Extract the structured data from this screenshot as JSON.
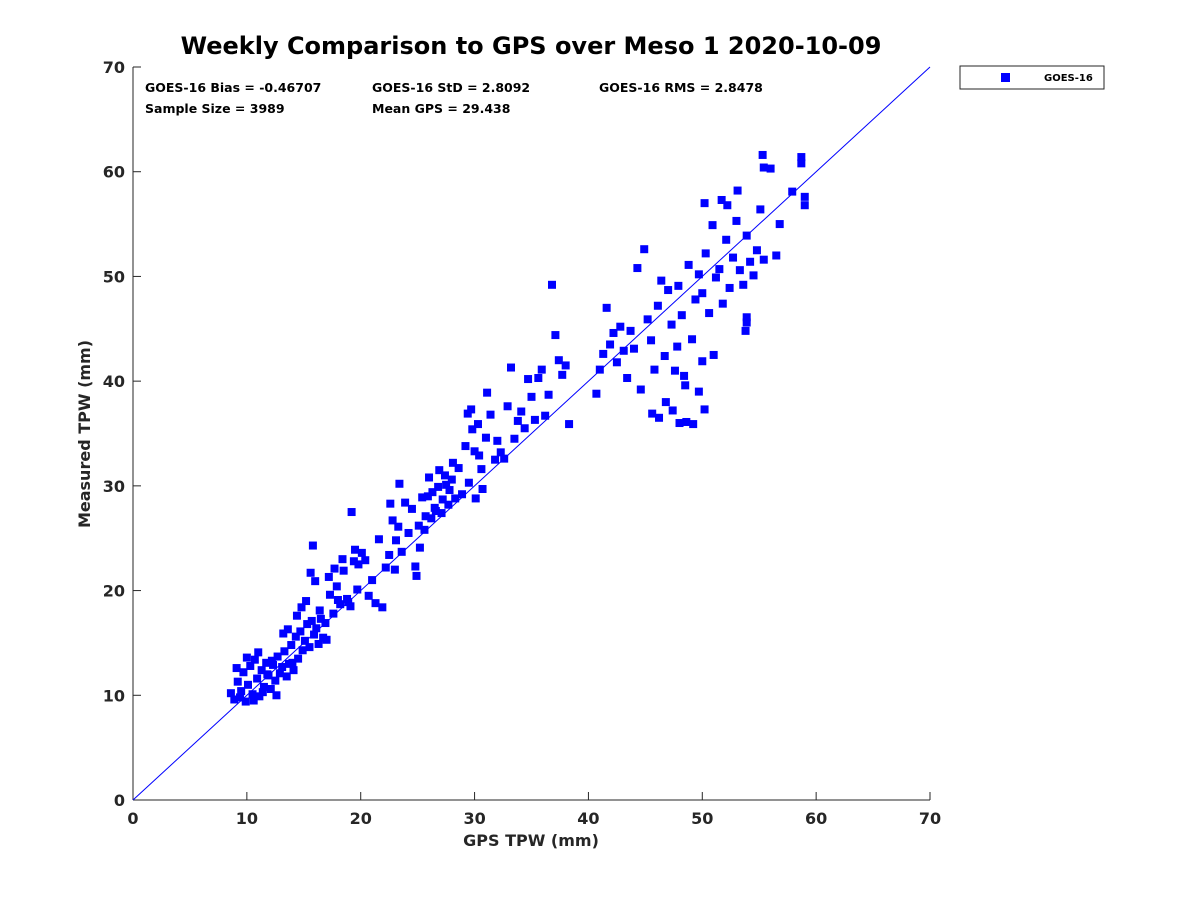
{
  "chart_data": {
    "type": "scatter",
    "title": "Weekly Comparison to GPS over Meso 1 2020-10-09",
    "xlabel": "GPS TPW (mm)",
    "ylabel": "Measured TPW (mm)",
    "xlim": [
      0,
      70
    ],
    "ylim": [
      0,
      70
    ],
    "xticks": [
      "0",
      "10",
      "20",
      "30",
      "40",
      "50",
      "60",
      "70"
    ],
    "yticks": [
      "0",
      "10",
      "20",
      "30",
      "40",
      "50",
      "60",
      "70"
    ],
    "grid": false,
    "legend_position": "outside-top-right",
    "reference_line": {
      "name": "1:1 line",
      "from": [
        0,
        0
      ],
      "to": [
        70,
        70
      ],
      "color": "#0000ff"
    },
    "stats": {
      "bias": "GOES-16 Bias = -0.46707",
      "std": "GOES-16 StD = 2.8092",
      "rms": "GOES-16 RMS = 2.8478",
      "sample_size": "Sample Size = 3989",
      "mean_gps": "Mean GPS = 29.438"
    },
    "series": [
      {
        "name": "GOES-16",
        "color": "#0000ff",
        "marker": "square",
        "points": [
          [
            8.6,
            10.2
          ],
          [
            8.9,
            9.6
          ],
          [
            9.2,
            11.3
          ],
          [
            9.5,
            10.4
          ],
          [
            9.7,
            12.2
          ],
          [
            9.9,
            9.4
          ],
          [
            10.1,
            11.0
          ],
          [
            10.3,
            12.8
          ],
          [
            10.5,
            10.1
          ],
          [
            10.7,
            13.4
          ],
          [
            10.9,
            11.6
          ],
          [
            11.1,
            9.9
          ],
          [
            11.3,
            12.4
          ],
          [
            11.5,
            10.8
          ],
          [
            11.7,
            13.1
          ],
          [
            11.9,
            11.9
          ],
          [
            12.1,
            10.6
          ],
          [
            12.3,
            12.9
          ],
          [
            12.5,
            11.4
          ],
          [
            12.7,
            13.7
          ],
          [
            9.1,
            12.6
          ],
          [
            9.4,
            9.8
          ],
          [
            10.0,
            13.6
          ],
          [
            10.6,
            9.5
          ],
          [
            11.0,
            14.1
          ],
          [
            11.4,
            10.3
          ],
          [
            11.8,
            12.0
          ],
          [
            12.2,
            13.3
          ],
          [
            12.6,
            10.0
          ],
          [
            12.9,
            12.1
          ],
          [
            13.1,
            12.7
          ],
          [
            13.3,
            14.2
          ],
          [
            13.5,
            11.8
          ],
          [
            13.7,
            13.0
          ],
          [
            13.9,
            14.8
          ],
          [
            14.1,
            12.4
          ],
          [
            14.3,
            15.6
          ],
          [
            14.5,
            13.5
          ],
          [
            14.7,
            16.1
          ],
          [
            14.9,
            14.3
          ],
          [
            15.1,
            15.2
          ],
          [
            15.3,
            16.8
          ],
          [
            15.5,
            14.6
          ],
          [
            15.7,
            17.1
          ],
          [
            15.9,
            15.8
          ],
          [
            16.1,
            16.4
          ],
          [
            16.3,
            14.9
          ],
          [
            16.5,
            17.3
          ],
          [
            16.7,
            15.5
          ],
          [
            16.9,
            16.9
          ],
          [
            13.2,
            15.9
          ],
          [
            13.6,
            16.3
          ],
          [
            14.0,
            13.1
          ],
          [
            14.4,
            17.6
          ],
          [
            14.8,
            18.4
          ],
          [
            15.2,
            19.0
          ],
          [
            15.6,
            21.7
          ],
          [
            15.8,
            24.3
          ],
          [
            16.0,
            20.9
          ],
          [
            16.4,
            18.1
          ],
          [
            17.0,
            15.3
          ],
          [
            17.3,
            19.6
          ],
          [
            17.6,
            17.8
          ],
          [
            17.9,
            20.4
          ],
          [
            18.2,
            18.7
          ],
          [
            18.5,
            21.9
          ],
          [
            18.8,
            19.2
          ],
          [
            19.1,
            18.5
          ],
          [
            19.4,
            22.8
          ],
          [
            19.7,
            20.1
          ],
          [
            17.2,
            21.3
          ],
          [
            17.7,
            22.1
          ],
          [
            18.0,
            19.1
          ],
          [
            18.4,
            23.0
          ],
          [
            18.9,
            18.9
          ],
          [
            19.2,
            27.5
          ],
          [
            19.5,
            23.9
          ],
          [
            19.8,
            22.5
          ],
          [
            20.1,
            23.6
          ],
          [
            20.4,
            22.9
          ],
          [
            20.7,
            19.5
          ],
          [
            21.0,
            21.0
          ],
          [
            21.3,
            18.8
          ],
          [
            21.6,
            24.9
          ],
          [
            21.9,
            18.4
          ],
          [
            22.2,
            22.2
          ],
          [
            22.5,
            23.4
          ],
          [
            22.8,
            26.7
          ],
          [
            23.1,
            24.8
          ],
          [
            23.4,
            30.2
          ],
          [
            22.6,
            28.3
          ],
          [
            23.0,
            22.0
          ],
          [
            23.3,
            26.1
          ],
          [
            23.6,
            23.7
          ],
          [
            23.9,
            28.4
          ],
          [
            24.2,
            25.5
          ],
          [
            24.5,
            27.8
          ],
          [
            24.8,
            22.3
          ],
          [
            24.9,
            21.4
          ],
          [
            25.1,
            26.2
          ],
          [
            25.4,
            28.9
          ],
          [
            25.7,
            27.1
          ],
          [
            26.0,
            30.8
          ],
          [
            26.3,
            29.4
          ],
          [
            26.6,
            27.6
          ],
          [
            26.9,
            31.5
          ],
          [
            27.2,
            28.7
          ],
          [
            27.5,
            30.1
          ],
          [
            27.8,
            29.6
          ],
          [
            28.1,
            32.2
          ],
          [
            25.2,
            24.1
          ],
          [
            25.6,
            25.8
          ],
          [
            25.9,
            29.0
          ],
          [
            26.2,
            26.9
          ],
          [
            26.5,
            27.9
          ],
          [
            26.8,
            29.9
          ],
          [
            27.1,
            27.4
          ],
          [
            27.4,
            31.0
          ],
          [
            27.7,
            28.2
          ],
          [
            28.0,
            30.6
          ],
          [
            28.3,
            28.8
          ],
          [
            28.6,
            31.7
          ],
          [
            28.9,
            29.2
          ],
          [
            29.2,
            33.8
          ],
          [
            29.5,
            30.3
          ],
          [
            29.8,
            35.4
          ],
          [
            30.1,
            28.8
          ],
          [
            30.4,
            32.9
          ],
          [
            30.7,
            29.7
          ],
          [
            31.0,
            34.6
          ],
          [
            29.4,
            36.9
          ],
          [
            29.7,
            37.3
          ],
          [
            30.0,
            33.3
          ],
          [
            30.3,
            35.9
          ],
          [
            30.6,
            31.6
          ],
          [
            31.1,
            38.9
          ],
          [
            31.4,
            36.8
          ],
          [
            31.8,
            32.5
          ],
          [
            32.0,
            34.3
          ],
          [
            32.3,
            33.2
          ],
          [
            32.6,
            32.6
          ],
          [
            32.9,
            37.6
          ],
          [
            33.2,
            41.3
          ],
          [
            33.5,
            34.5
          ],
          [
            33.8,
            36.2
          ],
          [
            34.1,
            37.1
          ],
          [
            34.4,
            35.5
          ],
          [
            34.7,
            40.2
          ],
          [
            35.0,
            38.5
          ],
          [
            35.3,
            36.3
          ],
          [
            35.6,
            40.3
          ],
          [
            35.9,
            41.1
          ],
          [
            36.2,
            36.7
          ],
          [
            36.5,
            38.7
          ],
          [
            36.8,
            49.2
          ],
          [
            37.1,
            44.4
          ],
          [
            37.4,
            42.0
          ],
          [
            37.7,
            40.6
          ],
          [
            38.0,
            41.5
          ],
          [
            38.3,
            35.9
          ],
          [
            40.7,
            38.8
          ],
          [
            41.0,
            41.1
          ],
          [
            41.3,
            42.6
          ],
          [
            41.6,
            47.0
          ],
          [
            41.9,
            43.5
          ],
          [
            42.2,
            44.6
          ],
          [
            42.5,
            41.8
          ],
          [
            42.8,
            45.2
          ],
          [
            43.1,
            42.9
          ],
          [
            43.4,
            40.3
          ],
          [
            43.7,
            44.8
          ],
          [
            44.0,
            43.1
          ],
          [
            44.3,
            50.8
          ],
          [
            44.6,
            39.2
          ],
          [
            44.9,
            52.6
          ],
          [
            45.2,
            45.9
          ],
          [
            45.5,
            43.9
          ],
          [
            45.8,
            41.1
          ],
          [
            46.1,
            47.2
          ],
          [
            46.4,
            49.6
          ],
          [
            46.7,
            42.4
          ],
          [
            47.0,
            48.7
          ],
          [
            47.3,
            45.4
          ],
          [
            47.6,
            41.0
          ],
          [
            47.9,
            49.1
          ],
          [
            48.2,
            46.3
          ],
          [
            48.5,
            39.6
          ],
          [
            48.8,
            51.1
          ],
          [
            49.1,
            44.0
          ],
          [
            49.4,
            47.8
          ],
          [
            45.6,
            36.9
          ],
          [
            46.2,
            36.5
          ],
          [
            46.8,
            38.0
          ],
          [
            47.4,
            37.2
          ],
          [
            48.0,
            36.0
          ],
          [
            48.6,
            36.1
          ],
          [
            49.2,
            35.9
          ],
          [
            49.7,
            39.0
          ],
          [
            50.2,
            37.3
          ],
          [
            50.0,
            41.9
          ],
          [
            49.7,
            50.2
          ],
          [
            50.0,
            48.4
          ],
          [
            50.3,
            52.2
          ],
          [
            50.6,
            46.5
          ],
          [
            50.9,
            54.9
          ],
          [
            51.2,
            49.9
          ],
          [
            51.5,
            50.7
          ],
          [
            51.8,
            47.4
          ],
          [
            52.1,
            53.5
          ],
          [
            52.4,
            48.9
          ],
          [
            52.7,
            51.8
          ],
          [
            53.0,
            55.3
          ],
          [
            53.3,
            50.6
          ],
          [
            53.6,
            49.2
          ],
          [
            53.9,
            53.9
          ],
          [
            54.2,
            51.4
          ],
          [
            54.5,
            50.1
          ],
          [
            54.8,
            52.5
          ],
          [
            55.1,
            56.4
          ],
          [
            55.4,
            51.6
          ],
          [
            51.7,
            57.3
          ],
          [
            52.2,
            56.8
          ],
          [
            53.1,
            58.2
          ],
          [
            51.0,
            42.5
          ],
          [
            53.9,
            46.1
          ],
          [
            53.9,
            45.6
          ],
          [
            53.8,
            44.8
          ],
          [
            55.3,
            61.6
          ],
          [
            55.4,
            60.4
          ],
          [
            56.0,
            60.3
          ],
          [
            56.5,
            52.0
          ],
          [
            56.8,
            55.0
          ],
          [
            57.9,
            58.1
          ],
          [
            58.7,
            61.4
          ],
          [
            58.7,
            60.8
          ],
          [
            59.0,
            57.6
          ],
          [
            59.0,
            56.8
          ],
          [
            50.2,
            57.0
          ],
          [
            47.8,
            43.3
          ],
          [
            48.4,
            40.5
          ]
        ]
      }
    ]
  }
}
